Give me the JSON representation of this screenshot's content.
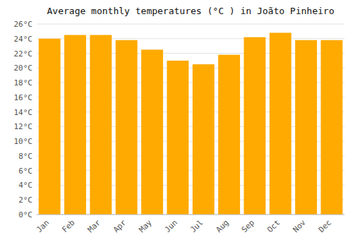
{
  "chart_data": {
    "type": "bar",
    "title": "Average monthly temperatures (°C ) in Joãto Pinheiro",
    "categories": [
      "Jan",
      "Feb",
      "Mar",
      "Apr",
      "May",
      "Jun",
      "Jul",
      "Aug",
      "Sep",
      "Oct",
      "Nov",
      "Dec"
    ],
    "values": [
      24.0,
      24.5,
      24.5,
      23.8,
      22.5,
      21.0,
      20.5,
      21.8,
      24.2,
      24.8,
      23.8,
      23.8
    ],
    "color": "#FFAA00",
    "ylim": [
      0,
      26
    ],
    "yticks": [
      {
        "value": 0,
        "label": "0°C"
      },
      {
        "value": 2,
        "label": "2°C"
      },
      {
        "value": 4,
        "label": "4°C"
      },
      {
        "value": 6,
        "label": "6°C"
      },
      {
        "value": 8,
        "label": "8°C"
      },
      {
        "value": 10,
        "label": "10°C"
      },
      {
        "value": 12,
        "label": "12°C"
      },
      {
        "value": 14,
        "label": "14°C"
      },
      {
        "value": 16,
        "label": "16°C"
      },
      {
        "value": 18,
        "label": "18°C"
      },
      {
        "value": 20,
        "label": "20°C"
      },
      {
        "value": 22,
        "label": "22°C"
      },
      {
        "value": 24,
        "label": "24°C"
      },
      {
        "value": 26,
        "label": "26°C"
      }
    ],
    "grid": true
  }
}
